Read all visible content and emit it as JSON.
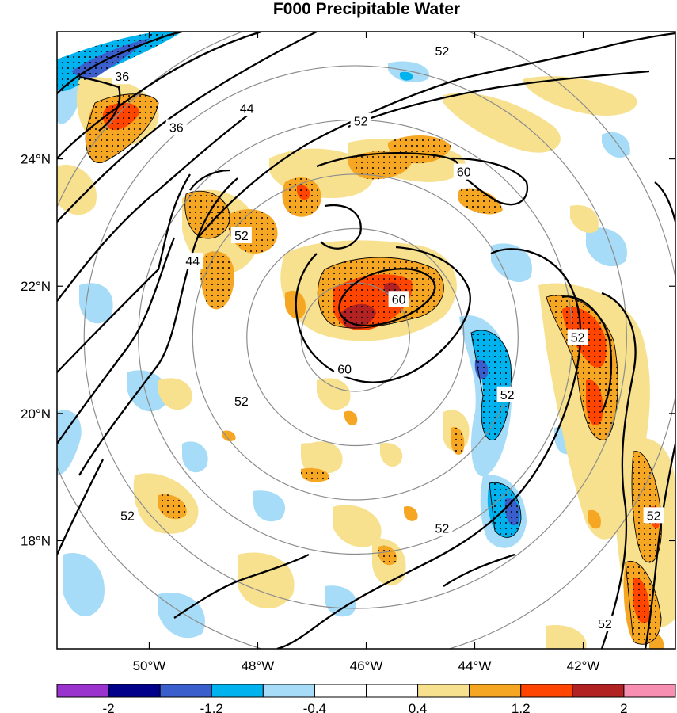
{
  "chart_data": {
    "type": "filled-contour-map",
    "title": "F000 Precipitable Water",
    "x_axis": {
      "ticks": [
        {
          "value": -50,
          "label": "50°W"
        },
        {
          "value": -48,
          "label": "48°W"
        },
        {
          "value": -46,
          "label": "46°W"
        },
        {
          "value": -44,
          "label": "44°W"
        },
        {
          "value": -42,
          "label": "42°W"
        }
      ],
      "range": [
        -51.7,
        -40.3
      ]
    },
    "y_axis": {
      "ticks": [
        {
          "value": 24,
          "label": "24°N"
        },
        {
          "value": 22,
          "label": "22°N"
        },
        {
          "value": 20,
          "label": "20°N"
        },
        {
          "value": 18,
          "label": "18°N"
        }
      ],
      "range": [
        16.3,
        26.0
      ]
    },
    "colorbar": {
      "colors": [
        "#9a32cd",
        "#00008b",
        "#3a5fcd",
        "#00b2ee",
        "#a6dcf7",
        "#ffffff",
        "#ffffff",
        "#f7e18f",
        "#f5a623",
        "#ff4500",
        "#b22222",
        "#f78fb3"
      ],
      "labels": [
        {
          "boundary": 1,
          "label": "-2"
        },
        {
          "boundary": 3,
          "label": "-1.2"
        },
        {
          "boundary": 5,
          "label": "-0.4"
        },
        {
          "boundary": 7,
          "label": "0.4"
        },
        {
          "boundary": 9,
          "label": "1.2"
        },
        {
          "boundary": 11,
          "label": "2"
        }
      ]
    },
    "contour_labels": [
      {
        "value": "36",
        "lon": -50.5,
        "lat": 25.3
      },
      {
        "value": "36",
        "lon": -49.5,
        "lat": 24.5
      },
      {
        "value": "44",
        "lon": -48.2,
        "lat": 24.8
      },
      {
        "value": "44",
        "lon": -49.2,
        "lat": 22.4
      },
      {
        "value": "52",
        "lon": -44.6,
        "lat": 25.7
      },
      {
        "value": "52",
        "lon": -46.1,
        "lat": 24.6
      },
      {
        "value": "52",
        "lon": -48.3,
        "lat": 22.8
      },
      {
        "value": "52",
        "lon": -48.3,
        "lat": 20.2
      },
      {
        "value": "52",
        "lon": -50.4,
        "lat": 18.4
      },
      {
        "value": "52",
        "lon": -43.4,
        "lat": 20.3
      },
      {
        "value": "52",
        "lon": -42.1,
        "lat": 21.2
      },
      {
        "value": "52",
        "lon": -44.6,
        "lat": 18.2
      },
      {
        "value": "52",
        "lon": -40.7,
        "lat": 18.4
      },
      {
        "value": "52",
        "lon": -41.6,
        "lat": 16.7
      },
      {
        "value": "60",
        "lon": -44.2,
        "lat": 23.8
      },
      {
        "value": "60",
        "lon": -45.4,
        "lat": 21.8
      },
      {
        "value": "60",
        "lon": -46.4,
        "lat": 20.7
      }
    ],
    "range_rings": {
      "center_lon": -46.2,
      "center_lat": 21.2,
      "radii_deg": [
        1.0,
        2.0,
        3.0,
        4.0,
        5.0,
        6.0
      ]
    }
  }
}
